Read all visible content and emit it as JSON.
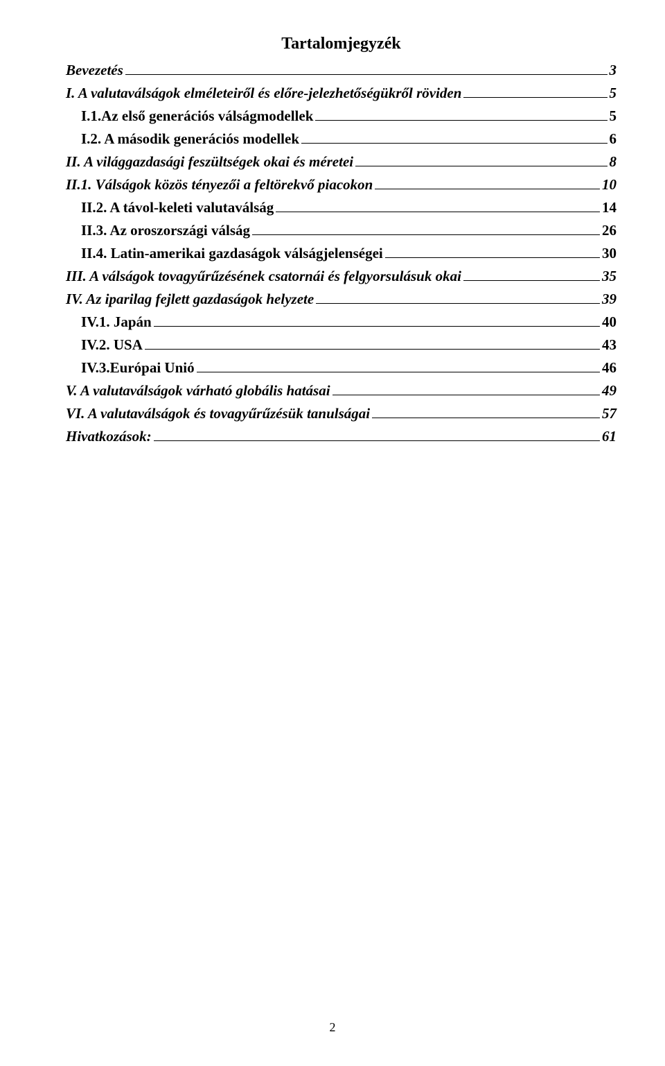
{
  "title": "Tartalomjegyzék",
  "entries": [
    {
      "label": "Bevezetés",
      "page": "3",
      "level": 0
    },
    {
      "label": "I. A valutaválságok elméleteiről és előre-jelezhetőségükről röviden",
      "page": "5",
      "level": 0
    },
    {
      "label": "I.1.Az első generációs válságmodellek",
      "page": "5",
      "level": 1
    },
    {
      "label": "I.2. A második generációs modellek",
      "page": "6",
      "level": 1
    },
    {
      "label": "II. A világgazdasági feszültségek okai és méretei",
      "page": "8",
      "level": 0
    },
    {
      "label": "II.1. Válságok közös tényezői a feltörekvő piacokon",
      "page": "10",
      "level": 0
    },
    {
      "label": "II.2. A távol-keleti valutaválság",
      "page": "14",
      "level": 1
    },
    {
      "label": "II.3. Az oroszországi válság",
      "page": "26",
      "level": 1
    },
    {
      "label": "II.4. Latin-amerikai gazdaságok válságjelenségei",
      "page": "30",
      "level": 1
    },
    {
      "label": "III. A válságok tovagyűrűzésének csatornái és felgyorsulásuk okai",
      "page": "35",
      "level": 0
    },
    {
      "label": "IV. Az iparilag fejlett gazdaságok helyzete",
      "page": "39",
      "level": 0
    },
    {
      "label": "IV.1. Japán",
      "page": "40",
      "level": 1
    },
    {
      "label": "IV.2. USA",
      "page": "43",
      "level": 1
    },
    {
      "label": "IV.3.Európai Unió",
      "page": "46",
      "level": 1
    },
    {
      "label": "V. A valutaválságok várható globális hatásai",
      "page": "49",
      "level": 0
    },
    {
      "label": "VI. A valutaválságok és tovagyűrűzésük tanulságai",
      "page": "57",
      "level": 0
    },
    {
      "label": "Hivatkozások:",
      "page": "61",
      "level": 0
    }
  ],
  "pageNumber": "2"
}
